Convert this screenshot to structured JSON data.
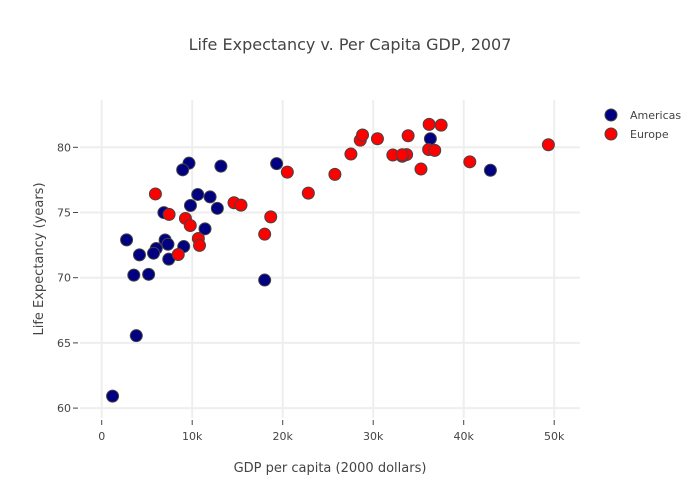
{
  "chart_data": {
    "type": "scatter",
    "title": "Life Expectancy v. Per Capita GDP, 2007",
    "xlabel": "GDP per capita (2000 dollars)",
    "ylabel": "Life Expectancy (years)",
    "xlim": [
      -2000,
      53000
    ],
    "ylim": [
      59,
      83.5
    ],
    "xticks": [
      0,
      10000,
      20000,
      30000,
      40000,
      50000
    ],
    "xtick_labels": [
      "0",
      "10k",
      "20k",
      "30k",
      "40k",
      "50k"
    ],
    "yticks": [
      60,
      65,
      70,
      75,
      80
    ],
    "ytick_labels": [
      "60",
      "65",
      "70",
      "75",
      "80"
    ],
    "grid": true,
    "legend_position": "top-right",
    "series": [
      {
        "name": "Americas",
        "color": "#000080",
        "points": [
          [
            12779,
            75.32
          ],
          [
            3822,
            65.554
          ],
          [
            9066,
            72.39
          ],
          [
            36319,
            80.653
          ],
          [
            13172,
            78.553
          ],
          [
            7007,
            72.889
          ],
          [
            9645,
            78.782
          ],
          [
            8948,
            78.273
          ],
          [
            6025,
            72.235
          ],
          [
            6873,
            74.994
          ],
          [
            5728,
            71.878
          ],
          [
            5186,
            70.259
          ],
          [
            1201,
            60.916
          ],
          [
            3548,
            70.198
          ],
          [
            7321,
            72.567
          ],
          [
            11978,
            76.195
          ],
          [
            2749,
            72.899
          ],
          [
            9809,
            75.537
          ],
          [
            4173,
            71.752
          ],
          [
            7409,
            71.421
          ],
          [
            19329,
            78.746
          ],
          [
            18008,
            69.819
          ],
          [
            42952,
            78.242
          ],
          [
            10611,
            76.384
          ],
          [
            11416,
            73.747
          ]
        ]
      },
      {
        "name": "Europe",
        "color": "#ff0000",
        "points": [
          [
            5937,
            76.423
          ],
          [
            36126,
            79.829
          ],
          [
            33693,
            79.441
          ],
          [
            7446,
            74.852
          ],
          [
            10681,
            73.005
          ],
          [
            14619,
            75.748
          ],
          [
            22833,
            76.486
          ],
          [
            35278,
            78.332
          ],
          [
            33207,
            79.313
          ],
          [
            30470,
            80.657
          ],
          [
            32170,
            79.406
          ],
          [
            27538,
            79.483
          ],
          [
            18009,
            73.338
          ],
          [
            36181,
            81.757
          ],
          [
            40676,
            78.885
          ],
          [
            28570,
            80.546
          ],
          [
            9254,
            74.543
          ],
          [
            36798,
            79.762
          ],
          [
            49357,
            80.196
          ],
          [
            15390,
            75.563
          ],
          [
            20510,
            78.098
          ],
          [
            10808,
            72.476
          ],
          [
            9787,
            74.002
          ],
          [
            18678,
            74.663
          ],
          [
            25768,
            77.926
          ],
          [
            28821,
            80.941
          ],
          [
            33860,
            80.884
          ],
          [
            37506,
            81.701
          ],
          [
            8458,
            71.777
          ],
          [
            33203,
            79.425
          ]
        ]
      }
    ]
  }
}
